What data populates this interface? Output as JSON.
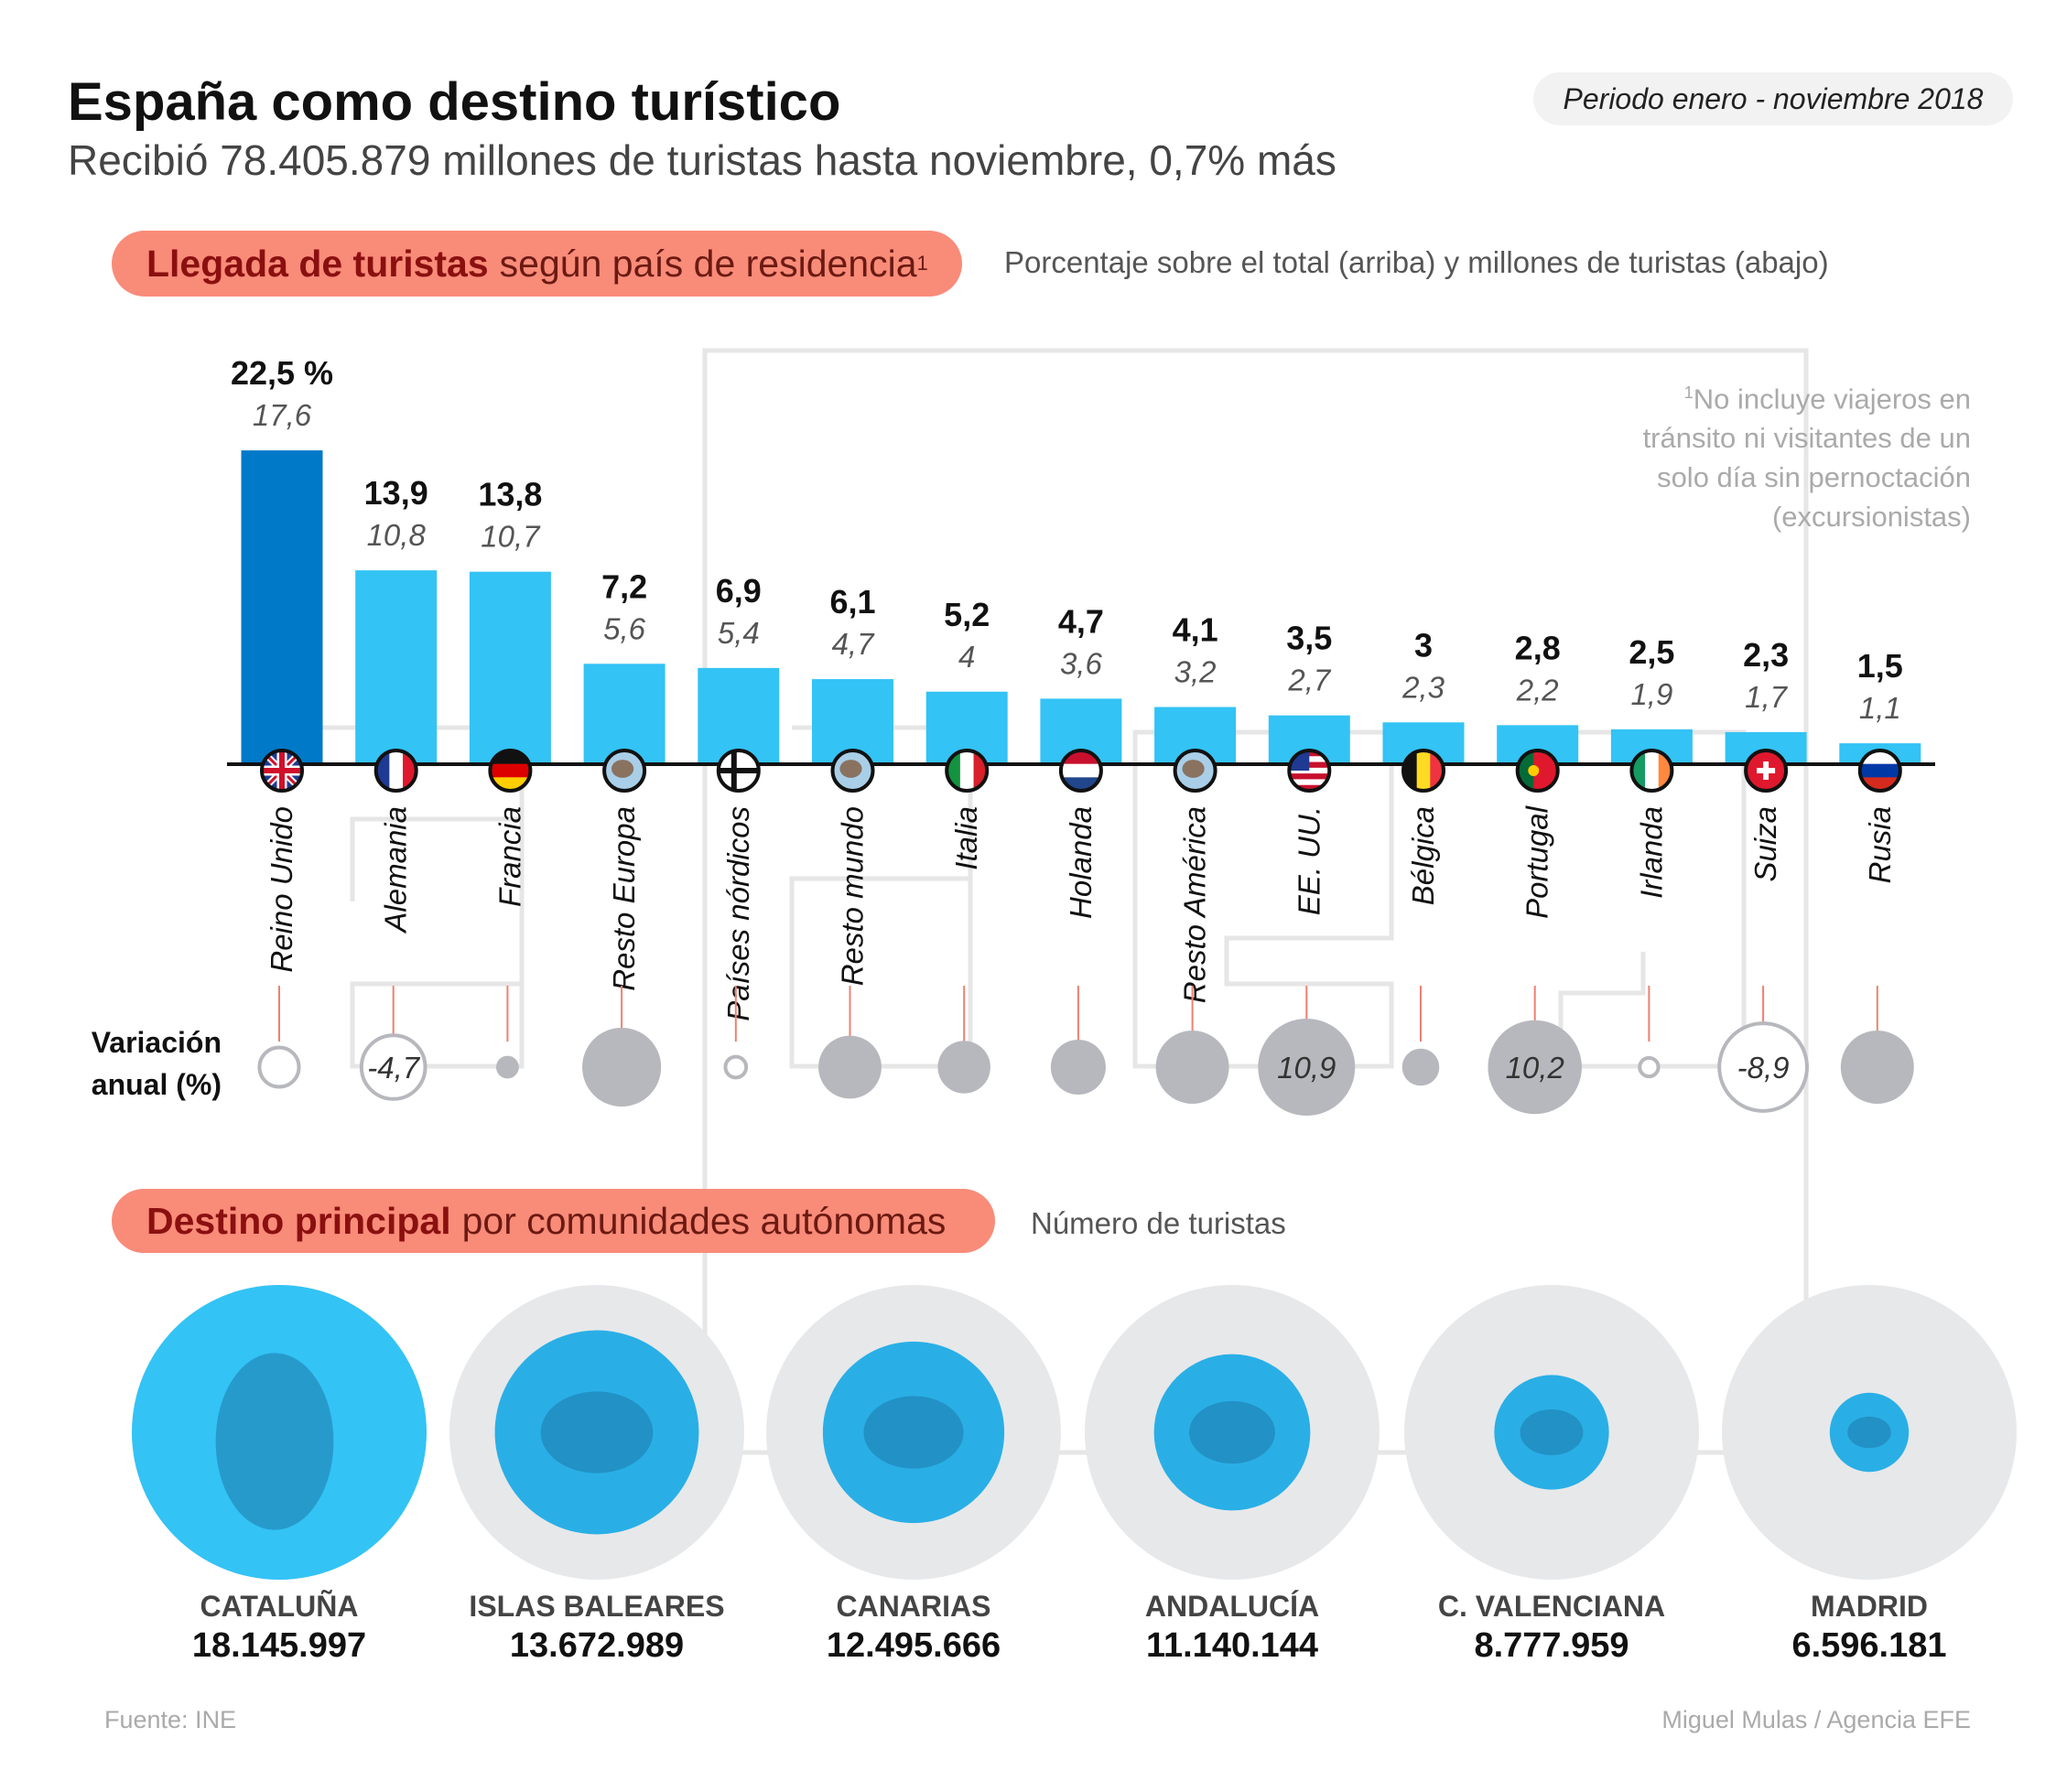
{
  "header": {
    "title": "España como destino turístico",
    "subtitle": "Recibió 78.405.879 millones de turistas hasta noviembre, 0,7% más",
    "period": "Periodo enero - noviembre 2018"
  },
  "section1": {
    "title_bold": "Llegada de turistas",
    "title_rest": "según país de residencia",
    "title_sup": "1",
    "note": "Porcentaje sobre el total (arriba) y millones de turistas (abajo)",
    "footnote_sup": "1",
    "footnote_lines": [
      "No incluye viajeros en",
      "tránsito ni visitantes de un",
      "solo día sin pernoctación",
      "(excursionistas)"
    ],
    "variation_label_1": "Variación",
    "variation_label_2": "anual (%)"
  },
  "section2": {
    "title_bold": "Destino principal",
    "title_rest": "por comunidades autónomas",
    "note": "Número de turistas"
  },
  "footer": {
    "source": "Fuente: INE",
    "credit": "Miguel Mulas / Agencia EFE"
  },
  "colors": {
    "bar": "#33c3f5",
    "bar_highlight": "#0079c8",
    "variation_circle": "#b7b8bd",
    "pill": "#f98b79",
    "region_outer": "#e7e8ea",
    "region_inner": "#29afe6",
    "region_first": "#33c3f5"
  },
  "chart_data": [
    {
      "type": "bar",
      "categories": [
        "Reino Unido",
        "Alemania",
        "Francia",
        "Resto Europa",
        "Países nórdicos",
        "Resto mundo",
        "Italia",
        "Holanda",
        "Resto América",
        "EE. UU.",
        "Bélgica",
        "Portugal",
        "Irlanda",
        "Suiza",
        "Rusia"
      ],
      "flags": [
        "uk-flag",
        "france-flag",
        "germany-flag",
        "europe-globe",
        "nordic-flag",
        "world-globe",
        "italy-flag",
        "netherlands-flag",
        "america-globe",
        "usa-flag",
        "belgium-flag",
        "portugal-flag",
        "ireland-flag",
        "switzerland-flag",
        "russia-flag"
      ],
      "percent_labels": [
        "22,5 %",
        "13,9",
        "13,8",
        "7,2",
        "6,9",
        "6,1",
        "5,2",
        "4,7",
        "4,1",
        "3,5",
        "3",
        "2,8",
        "2,5",
        "2,3",
        "1,5"
      ],
      "percent_values": [
        22.5,
        13.9,
        13.8,
        7.2,
        6.9,
        6.1,
        5.2,
        4.7,
        4.1,
        3.5,
        3,
        2.8,
        2.5,
        2.3,
        1.5
      ],
      "millions_labels": [
        "17,6",
        "10,8",
        "10,7",
        "5,6",
        "5,4",
        "4,7",
        "4",
        "3,6",
        "3,2",
        "2,7",
        "2,3",
        "2,2",
        "1,9",
        "1,7",
        "1,1"
      ],
      "millions_values": [
        17.6,
        10.8,
        10.7,
        5.6,
        5.4,
        4.7,
        4,
        3.6,
        3.2,
        2.7,
        2.3,
        2.2,
        1.9,
        1.7,
        1.1
      ],
      "variation_values_estimated": [
        -1.8,
        -4.7,
        0.6,
        7.2,
        -0.5,
        4.6,
        3.2,
        3.5,
        6.2,
        10.9,
        1.6,
        10.2,
        -0.4,
        -8.9,
        6.2
      ],
      "variation_labels": [
        "",
        "-4,7",
        "",
        "",
        "",
        "",
        "",
        "",
        "",
        "10,9",
        "",
        "10,2",
        "",
        "-8,9",
        ""
      ],
      "variation_encoding": "circle area; filled = positive, outline = negative"
    },
    {
      "type": "bubble",
      "categories": [
        "CATALUÑA",
        "ISLAS BALEARES",
        "CANARIAS",
        "ANDALUCÍA",
        "C. VALENCIANA",
        "MADRID"
      ],
      "values": [
        18145997,
        13672989,
        12495666,
        11140144,
        8777959,
        6596181
      ],
      "value_labels": [
        "18.145.997",
        "13.672.989",
        "12.495.666",
        "11.140.144",
        "8.777.959",
        "6.596.181"
      ]
    }
  ]
}
